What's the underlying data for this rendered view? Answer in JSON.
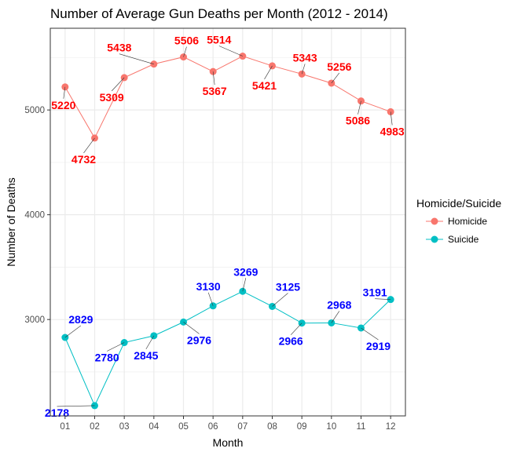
{
  "chart_data": {
    "type": "line",
    "title": "Number of Average Gun Deaths per Month (2012 - 2014)",
    "xlabel": "Month",
    "ylabel": "Number of Deaths",
    "categories": [
      "01",
      "02",
      "03",
      "04",
      "05",
      "06",
      "07",
      "08",
      "09",
      "10",
      "11",
      "12"
    ],
    "ylim": [
      2080,
      5780
    ],
    "yticks": [
      3000,
      4000,
      5000
    ],
    "grid": true,
    "legend": {
      "title": "Homicide/Suicide",
      "position": "right"
    },
    "series": [
      {
        "name": "Homicide",
        "color": "#F8766D",
        "label_color": "#FF0000",
        "values": [
          5220,
          4732,
          5309,
          5438,
          5506,
          5367,
          5514,
          5421,
          5343,
          5256,
          5086,
          4983
        ]
      },
      {
        "name": "Suicide",
        "color": "#00BFC4",
        "label_color": "#0000FF",
        "values": [
          2829,
          2178,
          2780,
          2845,
          2976,
          3130,
          3269,
          3125,
          2966,
          2968,
          2919,
          3191
        ]
      }
    ]
  }
}
